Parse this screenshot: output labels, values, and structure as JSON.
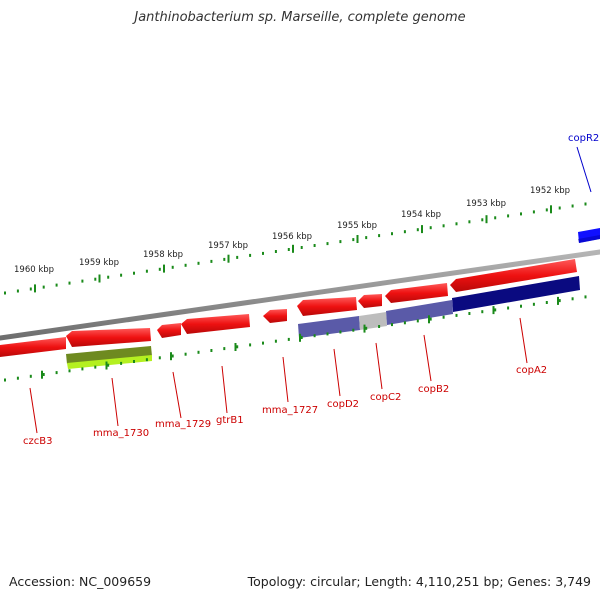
{
  "title": "Janthinobacterium sp. Marseille, complete genome",
  "footer": {
    "accession": "Accession: NC_009659",
    "summary": "Topology: circular; Length: 4,110,251 bp; Genes: 3,749"
  },
  "colors": {
    "backbone": "#8a8a8a",
    "tick": "#1a8a1a",
    "gene_red": "#e01010",
    "label_red": "#cc0000",
    "label_blue": "#0000cc",
    "cds_navy": "#0a0a80",
    "cds_lavender": "#5a5aa8",
    "cds_gray": "#bdbdbd",
    "cds_olive": "#6e8a20",
    "cds_lime": "#b4f020",
    "gene_blue": "#1010ff"
  },
  "scale": {
    "outer": [
      "1960 kbp",
      "1959 kbp",
      "1958 kbp",
      "1957 kbp",
      "1956 kbp",
      "1955 kbp",
      "1954 kbp",
      "1953 kbp",
      "1952 kbp"
    ]
  },
  "genes": [
    {
      "label": "czcB3",
      "color": "red"
    },
    {
      "label": "mma_1730",
      "color": "red"
    },
    {
      "label": "mma_1729",
      "color": "red"
    },
    {
      "label": "gtrB1",
      "color": "red"
    },
    {
      "label": "mma_1727",
      "color": "red"
    },
    {
      "label": "copD2",
      "color": "red"
    },
    {
      "label": "copC2",
      "color": "red"
    },
    {
      "label": "copB2",
      "color": "red"
    },
    {
      "label": "copA2",
      "color": "red"
    },
    {
      "label": "copR2",
      "color": "blue"
    }
  ]
}
